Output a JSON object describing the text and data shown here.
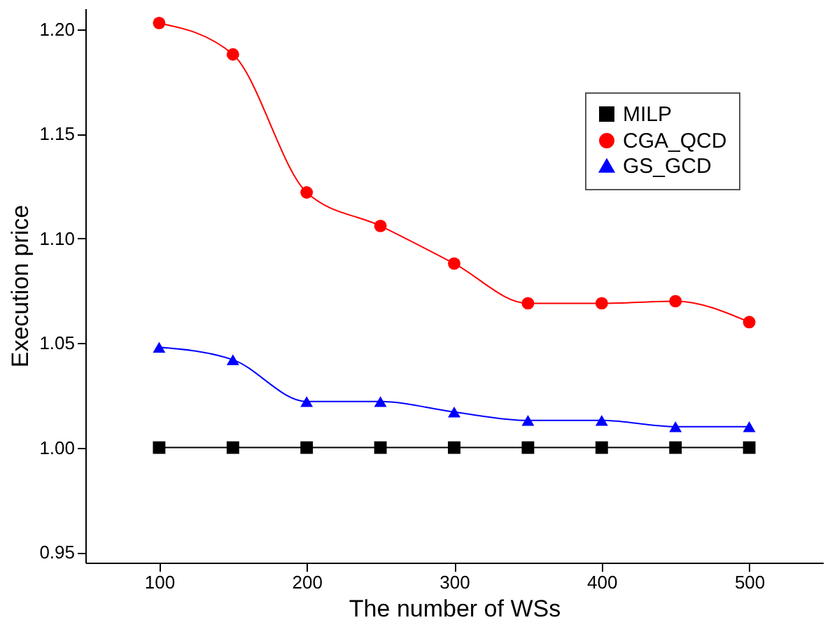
{
  "chart_data": {
    "type": "line",
    "xlabel": "The number of WSs",
    "ylabel": "Execution price",
    "x": [
      100,
      150,
      200,
      250,
      300,
      350,
      400,
      450,
      500
    ],
    "series": [
      {
        "name": "MILP",
        "color": "#000000",
        "marker": "square",
        "values": [
          1.0,
          1.0,
          1.0,
          1.0,
          1.0,
          1.0,
          1.0,
          1.0,
          1.0
        ]
      },
      {
        "name": "CGA_QCD",
        "color": "#ff0000",
        "marker": "circle",
        "values": [
          1.203,
          1.188,
          1.122,
          1.106,
          1.088,
          1.069,
          1.069,
          1.07,
          1.06
        ]
      },
      {
        "name": "GS_GCD",
        "color": "#0000ff",
        "marker": "triangle",
        "values": [
          1.048,
          1.042,
          1.022,
          1.022,
          1.017,
          1.013,
          1.013,
          1.01,
          1.01
        ]
      }
    ],
    "xlim": [
      50,
      550
    ],
    "xticks": [
      100,
      200,
      300,
      400,
      500
    ],
    "ylim": [
      0.945,
      1.21
    ],
    "yticks": [
      0.95,
      {
        "value": 1.0,
        "label": "1.00"
      },
      1.05,
      {
        "value": 1.1,
        "label": "1.10"
      },
      1.15,
      {
        "value": 1.2,
        "label": "1.20"
      }
    ],
    "grid": false,
    "legend": "top right",
    "line_style": "solid"
  }
}
